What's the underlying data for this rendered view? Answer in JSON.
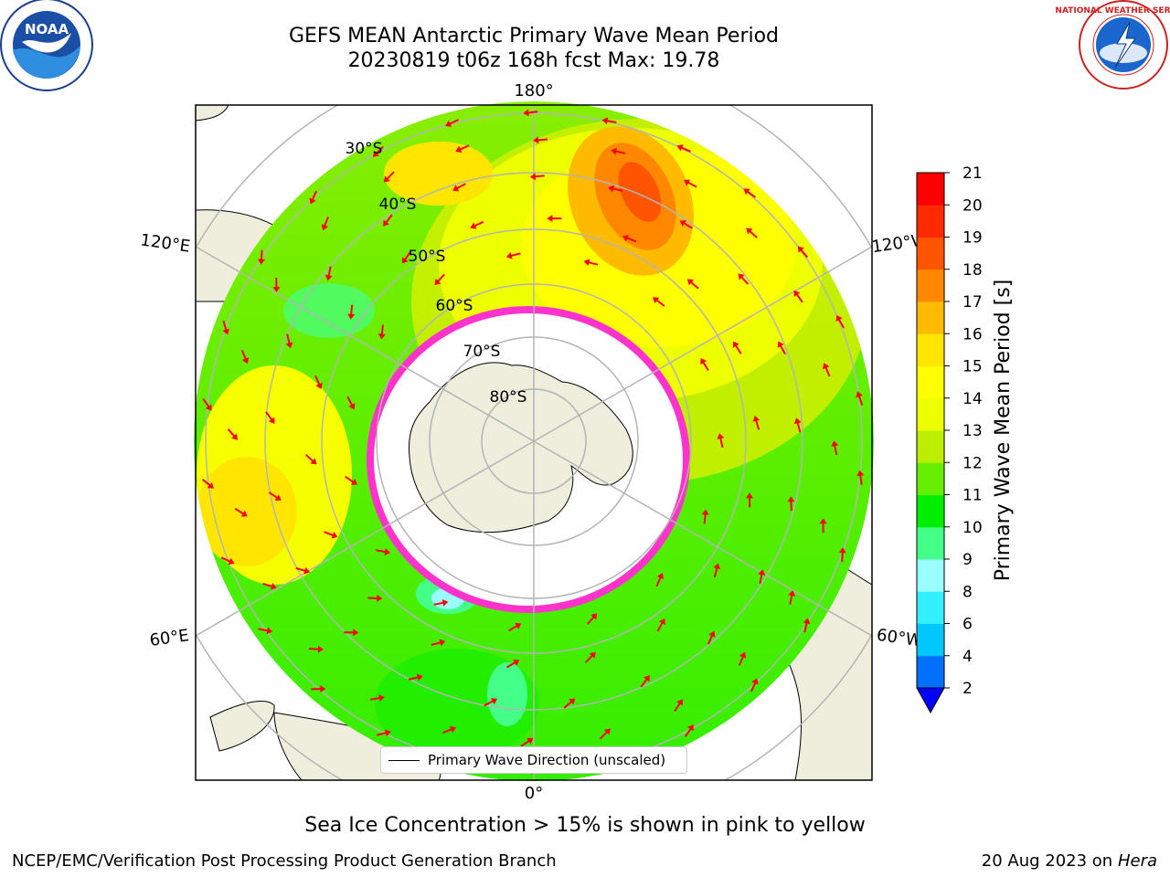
{
  "title": {
    "line1": "GEFS MEAN Antarctic Primary Wave Mean Period",
    "line2": "20230819 t06z 168h fcst   Max: 19.78"
  },
  "map": {
    "projection": "south-polar-stereographic",
    "lon_labels": {
      "top": "180°",
      "bottom": "0°",
      "upper_left": "120°E",
      "upper_right": "120°W",
      "lower_left": "60°E",
      "lower_right": "60°W"
    },
    "lat_labels": [
      "30°S",
      "40°S",
      "50°S",
      "60°S",
      "70°S",
      "80°S"
    ],
    "colors": {
      "land": "#efeddc",
      "ice_mask": "#ffffff",
      "sea_ice_edge": "#ff33cc",
      "arrows": "#ff0000",
      "grid": "#b4b4b4"
    }
  },
  "colorbar": {
    "label": "Primary Wave Mean Period [s]",
    "ticks": [
      "2",
      "4",
      "6",
      "8",
      "9",
      "10",
      "11",
      "12",
      "13",
      "14",
      "15",
      "16",
      "17",
      "18",
      "19",
      "20",
      "21"
    ],
    "colors": [
      "#0070ff",
      "#00c8ff",
      "#33f0ff",
      "#99ffff",
      "#44ff88",
      "#00ee00",
      "#66ee00",
      "#bbee00",
      "#eeff00",
      "#ffff00",
      "#ffe600",
      "#ffbb00",
      "#ff8800",
      "#ff5500",
      "#ff2a00",
      "#ff0000"
    ],
    "extend_color": "#0000ff"
  },
  "legend": {
    "label": "Primary Wave Direction (unscaled)"
  },
  "logos": {
    "noaa": {
      "text": "NOAA",
      "ring": "NATIONAL OCEANIC AND ATMOSPHERIC ADMINISTRATION · U.S. DEPARTMENT OF COMMERCE"
    },
    "nws": {
      "ring": "NATIONAL WEATHER SERVICE"
    }
  },
  "note": "Sea Ice Concentration > 15% is shown in pink to yellow",
  "footer": {
    "left": "NCEP/EMC/Verification Post Processing Product Generation Branch",
    "date": "20 Aug 2023 on",
    "machine": "Hera"
  }
}
